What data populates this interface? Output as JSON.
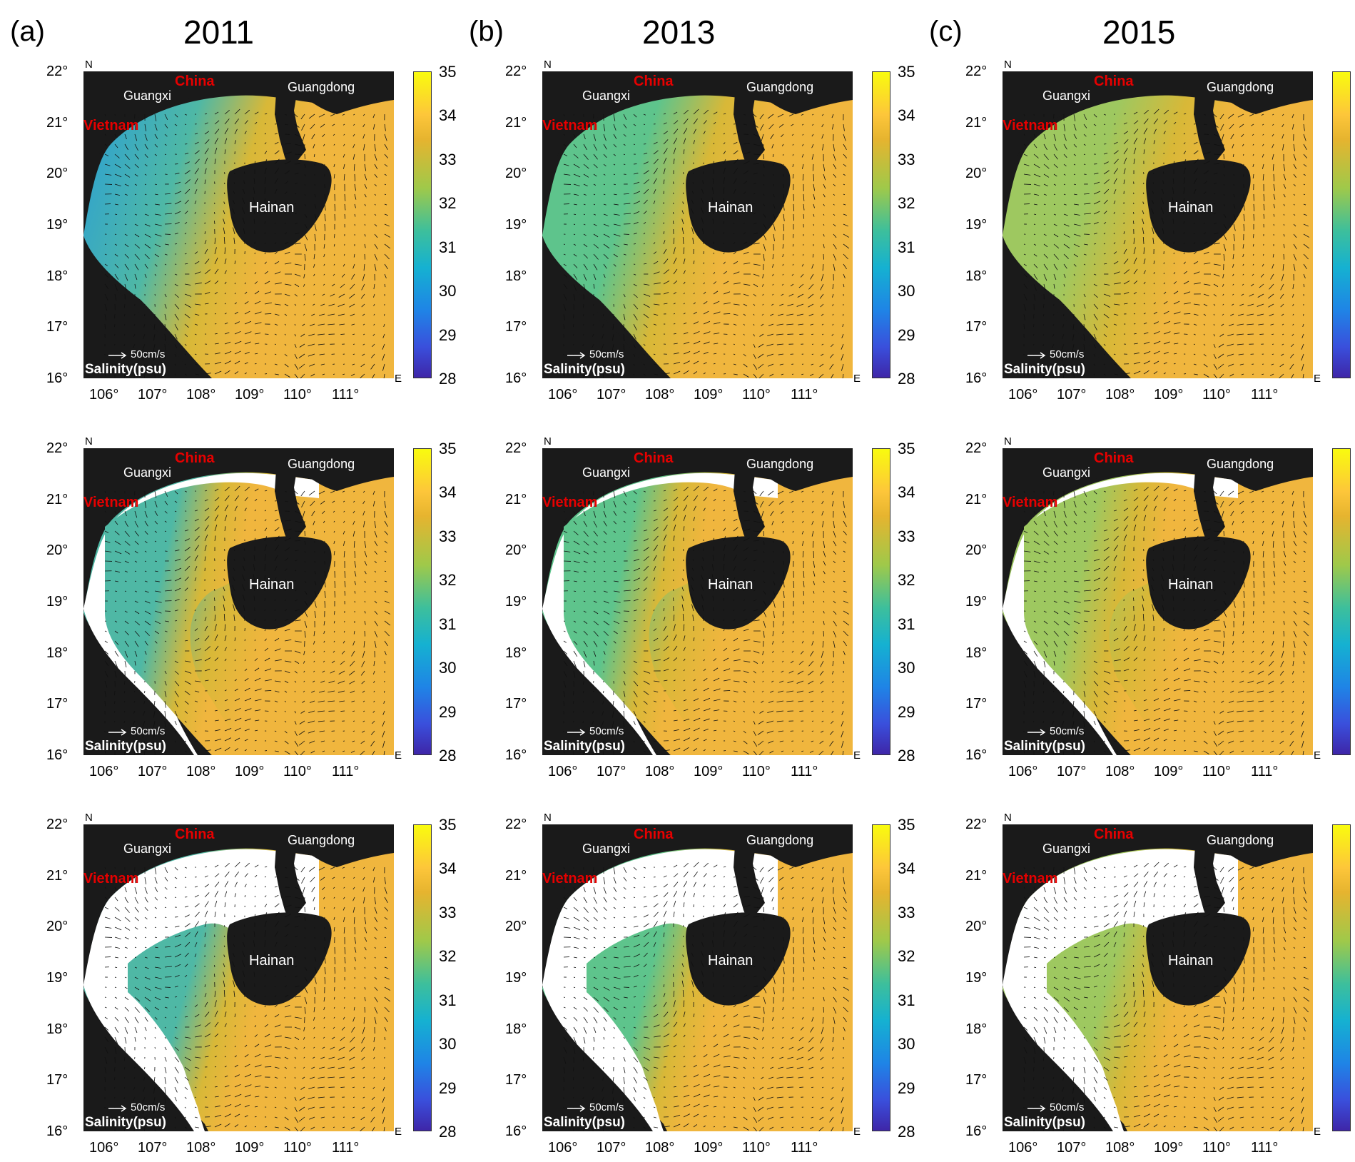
{
  "columns": [
    {
      "label": "(a)",
      "year": "2011",
      "tint": "#4fb8a5"
    },
    {
      "label": "(b)",
      "year": "2013",
      "tint": "#5ec48c"
    },
    {
      "label": "(c)",
      "year": "2015",
      "tint": "#9ec860"
    }
  ],
  "rows": [
    {
      "variant": "full"
    },
    {
      "variant": "mid"
    },
    {
      "variant": "small"
    }
  ],
  "lat_ticks": [
    "22°",
    "21°",
    "20°",
    "19°",
    "18°",
    "17°",
    "16°"
  ],
  "lon_ticks": [
    "106°",
    "107°",
    "108°",
    "109°",
    "110°",
    "111°"
  ],
  "colorbar_ticks": [
    "35",
    "34",
    "33",
    "32",
    "31",
    "30",
    "29",
    "28"
  ],
  "colorbar_range": [
    28,
    35
  ],
  "map_labels": {
    "china": "China",
    "vietnam": "Vietnam",
    "guangxi": "Guangxi",
    "guangdong": "Guangdong",
    "hainan": "Hainan",
    "north": "N",
    "east": "E",
    "scale": "50cm/s",
    "salinity": "Salinity(psu)"
  },
  "colors": {
    "land": "#1a1a1a",
    "sea_high": "#f0b63e",
    "sea_low": "#2a9fd6",
    "mask": "#ffffff",
    "label_red": "#e60000"
  }
}
